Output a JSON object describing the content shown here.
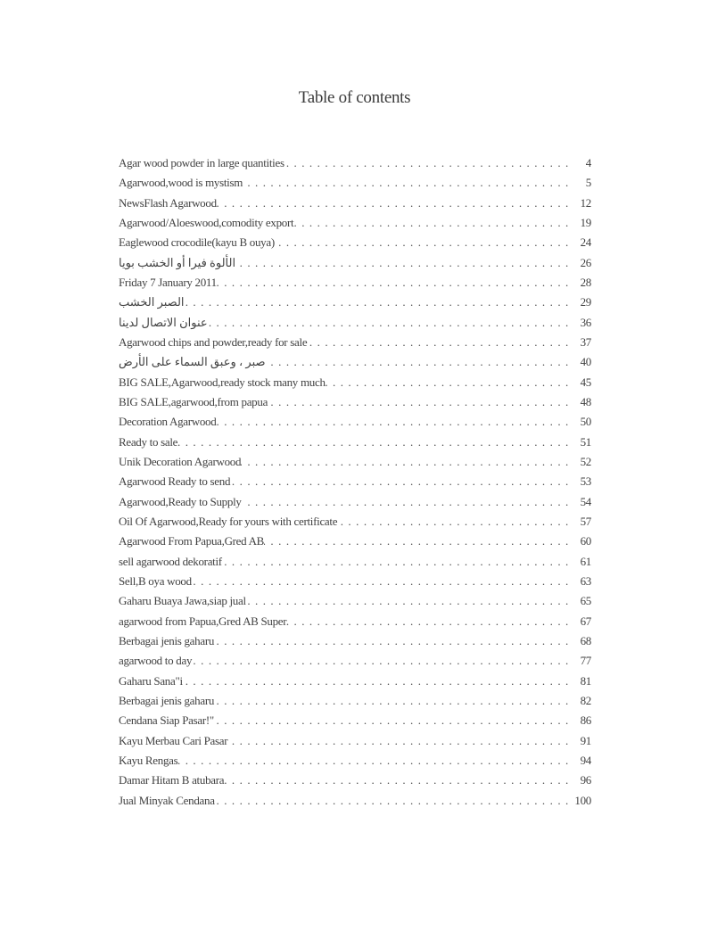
{
  "page": {
    "title": "Table of contents"
  },
  "leader": {
    "dot": ". "
  },
  "toc": {
    "entries": [
      {
        "label": "Agar wood powder in large quantities",
        "page": "4"
      },
      {
        "label": "Agarwood,wood is mystism",
        "page": "5"
      },
      {
        "label": "NewsFlash Agarwood",
        "page": "12"
      },
      {
        "label": "Agarwood/Aloeswood,comodity export",
        "page": "19"
      },
      {
        "label": "Eaglewood crocodile(kayu B ouya)",
        "page": "24"
      },
      {
        "label": "الألوة فيرا أو الخشب بويا",
        "page": "26"
      },
      {
        "label": "Friday 7 January 2011",
        "page": "28"
      },
      {
        "label": "الصبر الخشب",
        "page": "29"
      },
      {
        "label": "عنوان الاتصال لدينا",
        "page": "36"
      },
      {
        "label": "Agarwood chips and powder,ready for sale",
        "page": "37"
      },
      {
        "label": "صبر ، وعبق السماء على الأرض",
        "page": "40"
      },
      {
        "label": "BIG SALE,Agarwood,ready stock many much",
        "page": "45"
      },
      {
        "label": "BIG SALE,agarwood,from papua",
        "page": "48"
      },
      {
        "label": "Decoration Agarwood",
        "page": "50"
      },
      {
        "label": "Ready to sale",
        "page": "51"
      },
      {
        "label": "Unik Decoration Agarwood",
        "page": "52"
      },
      {
        "label": "Agarwood Ready to send",
        "page": "53"
      },
      {
        "label": "Agarwood,Ready to Supply",
        "page": "54"
      },
      {
        "label": "Oil Of Agarwood,Ready for yours with certificate",
        "page": "57"
      },
      {
        "label": "Agarwood From Papua,Gred AB",
        "page": "60"
      },
      {
        "label": "sell agarwood dekoratif",
        "page": "61"
      },
      {
        "label": "Sell,B oya wood",
        "page": "63"
      },
      {
        "label": "Gaharu Buaya Jawa,siap jual",
        "page": "65"
      },
      {
        "label": "agarwood from Papua,Gred AB Super",
        "page": "67"
      },
      {
        "label": "Berbagai jenis gaharu",
        "page": "68"
      },
      {
        "label": "agarwood to day",
        "page": "77"
      },
      {
        "label": "Gaharu Sana\"i",
        "page": "81"
      },
      {
        "label": "Berbagai jenis gaharu",
        "page": "82"
      },
      {
        "label": "Cendana Siap Pasar!\"",
        "page": "86"
      },
      {
        "label": "Kayu Merbau Cari Pasar",
        "page": "91"
      },
      {
        "label": "Kayu Rengas",
        "page": "94"
      },
      {
        "label": "Damar Hitam B atubara",
        "page": "96"
      },
      {
        "label": "Jual Minyak Cendana",
        "page": "100"
      }
    ]
  }
}
